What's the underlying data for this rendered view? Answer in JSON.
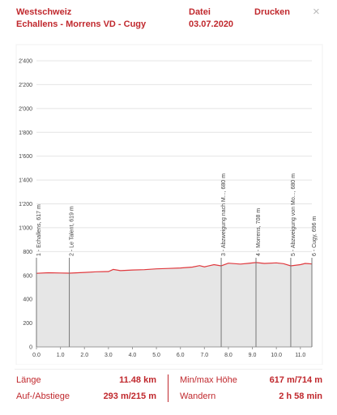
{
  "header": {
    "region": "Westschweiz",
    "route": "Echallens - Morrens VD - Cugy",
    "file": "Datei",
    "date": "03.07.2020",
    "print": "Drucken",
    "close": "×"
  },
  "chart_data": {
    "type": "area",
    "color": "#e0393e",
    "fill": "#e6e6e6",
    "grid": true,
    "x": [
      0,
      0.5,
      1.0,
      1.37,
      2.0,
      2.5,
      3.0,
      3.2,
      3.5,
      4.0,
      4.5,
      5.0,
      5.5,
      6.0,
      6.5,
      6.8,
      7.0,
      7.4,
      7.7,
      8.0,
      8.5,
      8.8,
      9.15,
      9.5,
      10.0,
      10.3,
      10.6,
      11.0,
      11.2,
      11.48
    ],
    "values": [
      617,
      622,
      620,
      619,
      625,
      630,
      632,
      650,
      640,
      645,
      648,
      655,
      658,
      662,
      670,
      682,
      672,
      690,
      680,
      702,
      695,
      700,
      708,
      700,
      705,
      698,
      680,
      690,
      700,
      696
    ],
    "xlim": [
      0,
      11.48
    ],
    "ylim": [
      0,
      2400
    ],
    "xticks": [
      {
        "value": 0,
        "label": "0.0"
      },
      {
        "value": 1,
        "label": "1.0"
      },
      {
        "value": 2,
        "label": "2.0"
      },
      {
        "value": 3,
        "label": "3.0"
      },
      {
        "value": 4,
        "label": "4.0"
      },
      {
        "value": 5,
        "label": "5.0"
      },
      {
        "value": 6,
        "label": "6.0"
      },
      {
        "value": 7,
        "label": "7.0"
      },
      {
        "value": 8,
        "label": "8.0"
      },
      {
        "value": 9,
        "label": "9.0"
      },
      {
        "value": 10,
        "label": "10.0"
      },
      {
        "value": 11,
        "label": "11.0"
      }
    ],
    "yticks": [
      0,
      200,
      400,
      600,
      800,
      {
        "value": 1000,
        "label": "1'000"
      },
      {
        "value": 1200,
        "label": "1'200"
      },
      {
        "value": 1400,
        "label": "1'400"
      },
      {
        "value": 1600,
        "label": "1'600"
      },
      {
        "value": 1800,
        "label": "1'800"
      },
      {
        "value": 2000,
        "label": "2'000"
      },
      {
        "value": 2200,
        "label": "2'200"
      },
      {
        "value": 2400,
        "label": "2'400"
      }
    ],
    "markers": [
      {
        "x": 0,
        "label": "1 - Echallens, 617 m"
      },
      {
        "x": 1.37,
        "label": "2 - Le Talent, 619 m"
      },
      {
        "x": 7.7,
        "label": "3 - Abzweigung nach M..., 680 m"
      },
      {
        "x": 9.15,
        "label": "4 - Morrens, 708 m"
      },
      {
        "x": 10.6,
        "label": "5 - Abzweigung von Mo..., 680 m"
      },
      {
        "x": 11.48,
        "label": "6 - Cugy, 696 m"
      }
    ]
  },
  "stats": [
    [
      "Länge",
      "11.48 km",
      "Min/max Höhe",
      "617 m/714 m"
    ],
    [
      "Auf-/Abstiege",
      "293 m/215 m",
      "Wandern",
      "2 h 58 min"
    ]
  ]
}
